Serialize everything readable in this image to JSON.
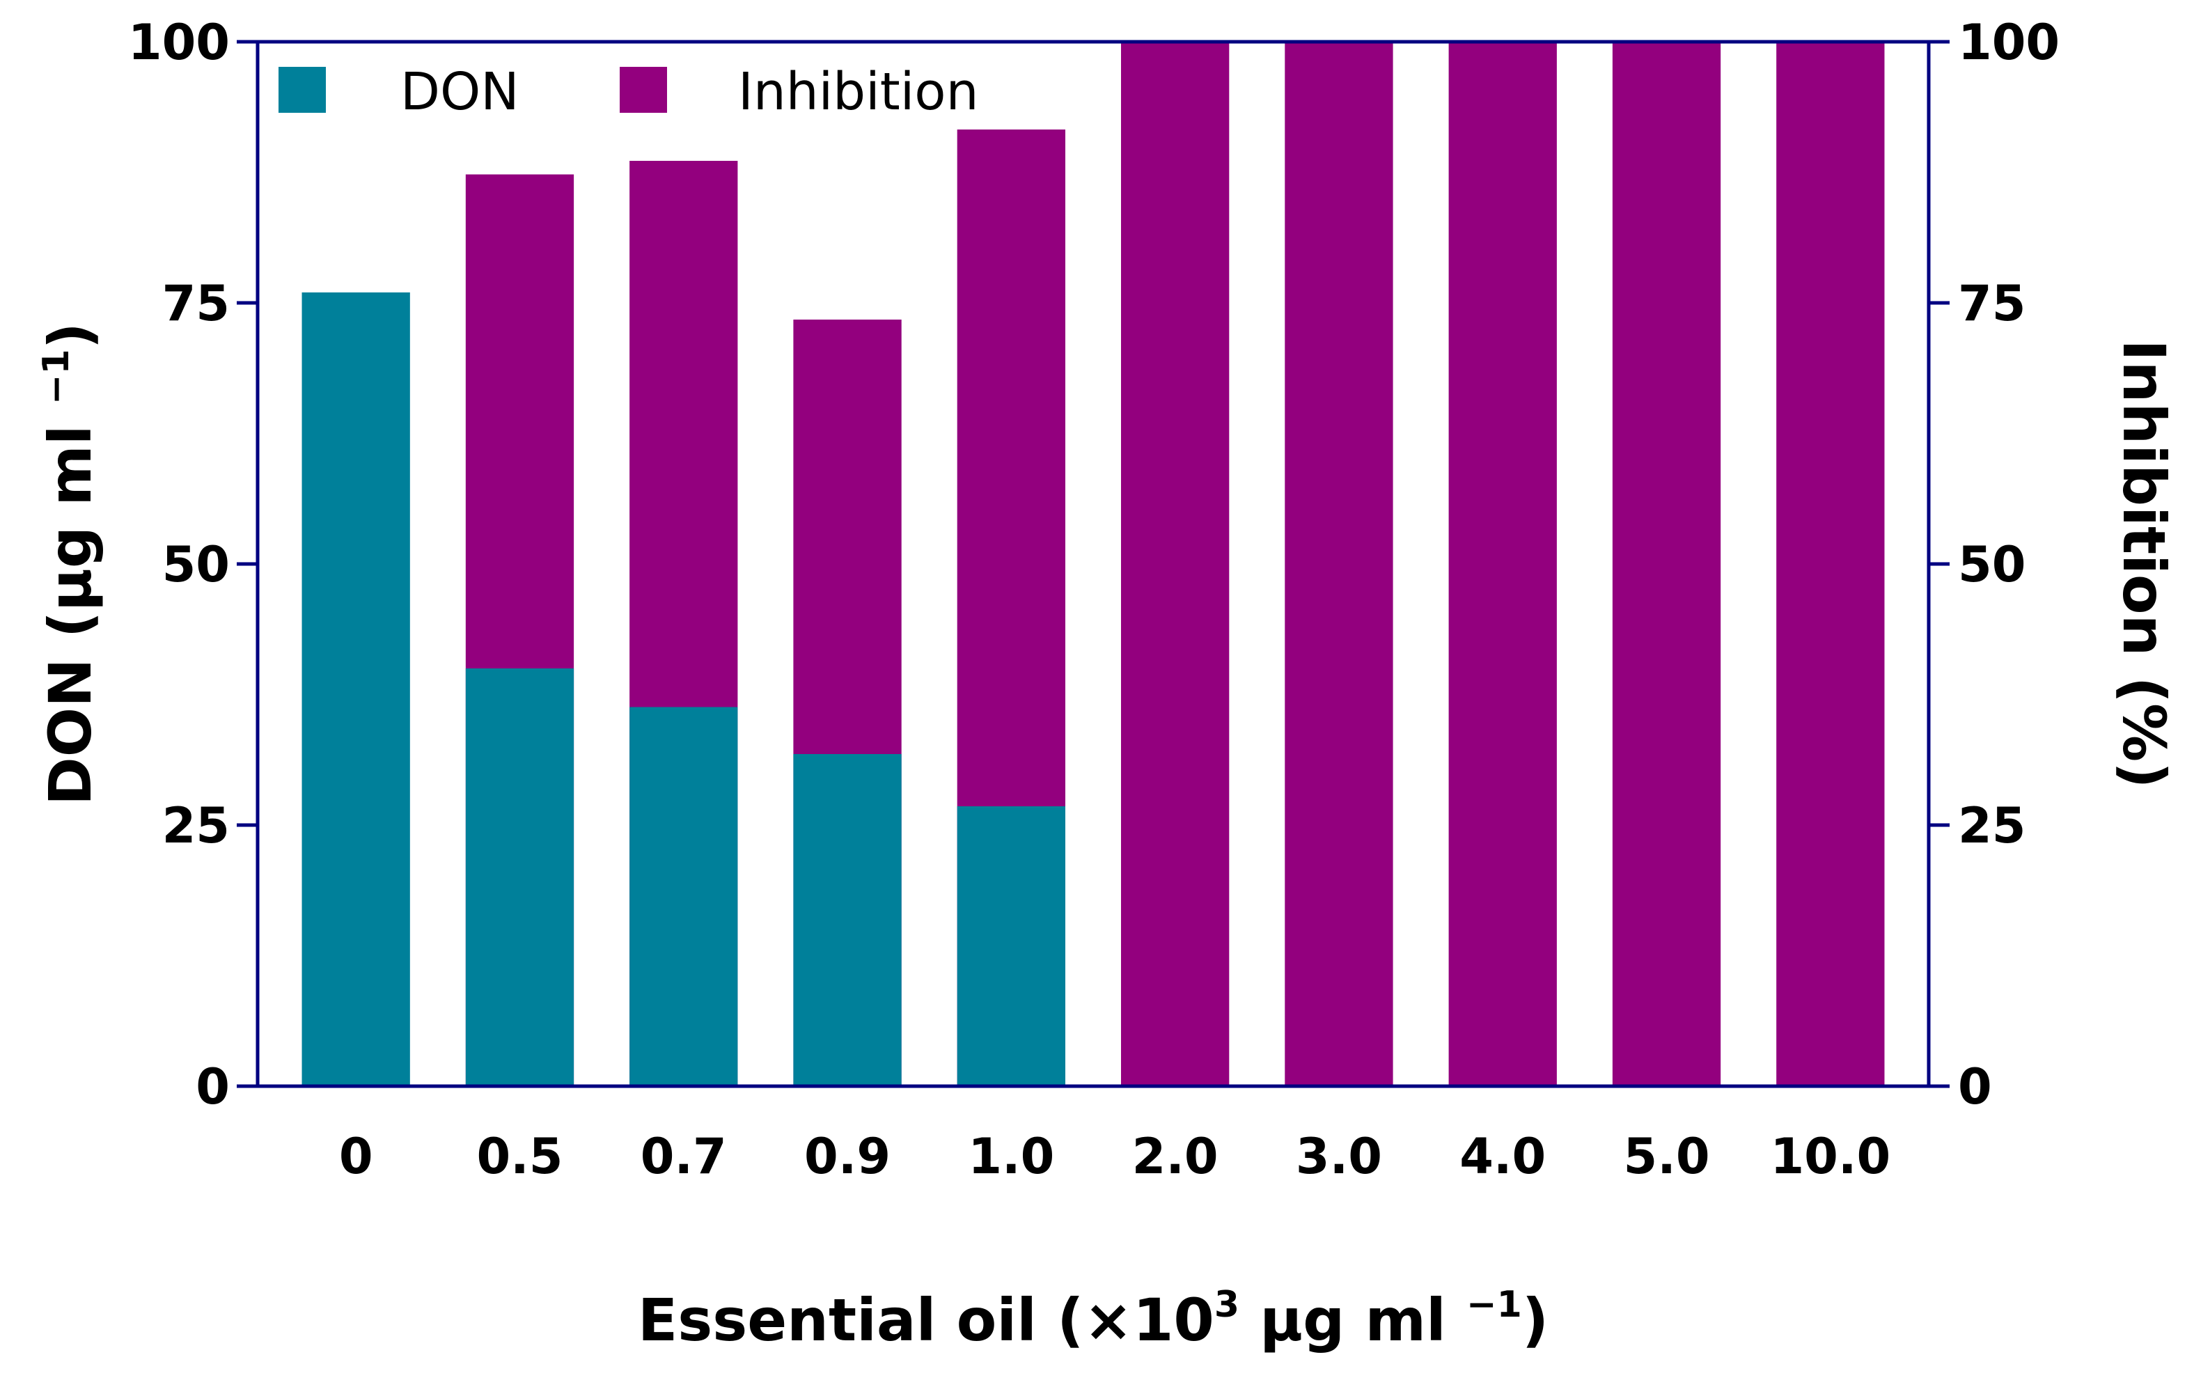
{
  "chart_data": {
    "type": "bar",
    "title": "",
    "categories": [
      "0",
      "0.5",
      "0.7",
      "0.9",
      "1.0",
      "2.0",
      "3.0",
      "4.0",
      "5.0",
      "10.0"
    ],
    "series": [
      {
        "name": "DON",
        "axis": "left",
        "color": "#00809a",
        "values": [
          76,
          40,
          36.3,
          31.8,
          26.8,
          0,
          0,
          0,
          0,
          0
        ]
      },
      {
        "name": "Inhibition",
        "axis": "right",
        "color": "#93007e",
        "values": [
          0,
          87.3,
          88.6,
          73.4,
          91.6,
          100,
          100,
          100,
          100,
          100
        ]
      }
    ],
    "xlabel": {
      "before": "Essential oil (×10",
      "exponent": "3",
      "middle": " μg ml ",
      "unit_exponent": "−1",
      "after": ")"
    },
    "ylabel_left": {
      "base": "DON (μg ml ",
      "exponent": "−1",
      "after": ")"
    },
    "ylabel_right": "Inhibition (%)",
    "ylim": [
      0,
      100
    ],
    "ylim_right": [
      0,
      100
    ],
    "yticks": [
      "0",
      "25",
      "50",
      "75",
      "100"
    ],
    "yticks_right": [
      "0",
      "25",
      "50",
      "75",
      "100"
    ],
    "legend": {
      "position": "top-left",
      "entries": [
        "DON",
        "Inhibition"
      ]
    },
    "axis_color": "#000080",
    "grid": false
  }
}
